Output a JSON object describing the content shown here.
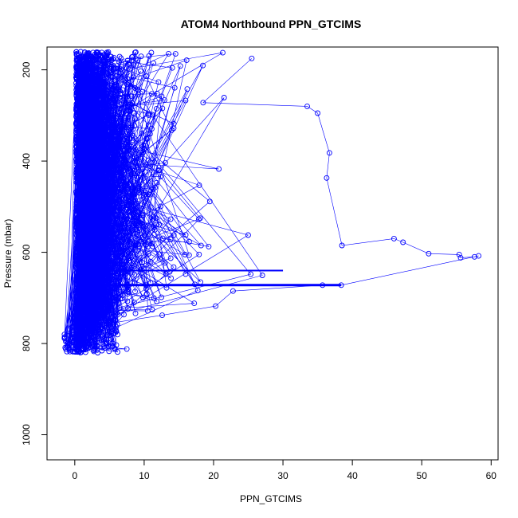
{
  "chart_data": {
    "type": "scatter",
    "title": "ATOM4 Northbound PPN_GTCIMS",
    "xlabel": "PPN_GTCIMS",
    "ylabel": "Pressure (mbar)",
    "xlim": [
      -4,
      61
    ],
    "ylim": [
      1055,
      150
    ],
    "y_reversed": true,
    "x_ticks": [
      0,
      10,
      20,
      30,
      40,
      50,
      60
    ],
    "y_ticks": [
      200,
      400,
      600,
      800,
      1000
    ],
    "grid": false,
    "legend": "none",
    "marker": "open-circle",
    "connected_by_line": true,
    "color": "#0000ff",
    "x": [
      25.5,
      18.5,
      33.5,
      35.0,
      36.7,
      36.3,
      38.5,
      46.0,
      47.3,
      51.0,
      55.4,
      55.6,
      57.6,
      58.2,
      38.4,
      35.7,
      22.8,
      20.3,
      12.6,
      3.2,
      0.6,
      2.4,
      7.5,
      5.8,
      1.3,
      3.3
    ],
    "y": [
      175,
      272,
      280,
      295,
      382,
      437,
      585,
      570,
      578,
      603,
      605,
      612,
      610,
      608,
      672,
      672,
      685,
      718,
      738,
      760,
      795,
      805,
      812,
      812,
      812,
      820
    ]
  },
  "series_color": "#0000ff"
}
